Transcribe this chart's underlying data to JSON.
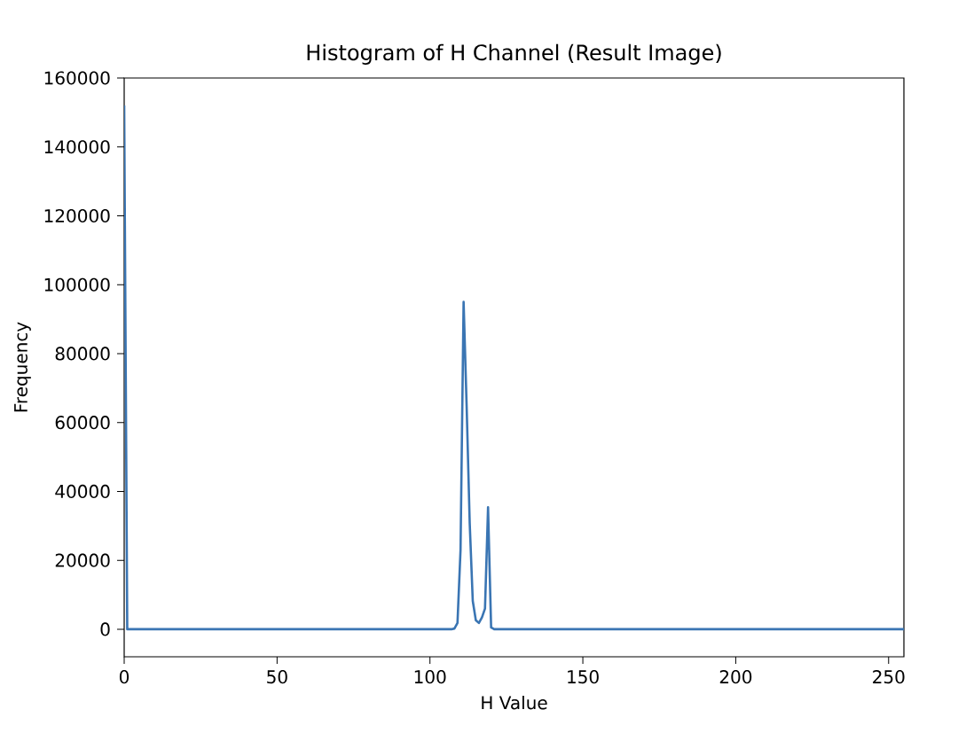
{
  "chart_data": {
    "type": "line",
    "title": "Histogram of H Channel (Result Image)",
    "xlabel": "H Value",
    "ylabel": "Frequency",
    "xlim": [
      0,
      255
    ],
    "ylim": [
      -8000,
      160000
    ],
    "xticks": [
      0,
      50,
      100,
      150,
      200,
      250
    ],
    "yticks": [
      0,
      20000,
      40000,
      60000,
      80000,
      100000,
      120000,
      140000,
      160000
    ],
    "grid": false,
    "series": [
      {
        "color": "#3a75b3",
        "x": [
          0,
          1,
          107,
          108,
          109,
          110,
          111,
          112,
          113,
          114,
          115,
          116,
          117,
          118,
          119,
          120,
          121,
          255
        ],
        "values": [
          152000,
          0,
          0,
          200,
          1800,
          23000,
          95000,
          64600,
          30800,
          8200,
          2600,
          1800,
          3400,
          6000,
          35400,
          500,
          0,
          0
        ]
      }
    ]
  }
}
